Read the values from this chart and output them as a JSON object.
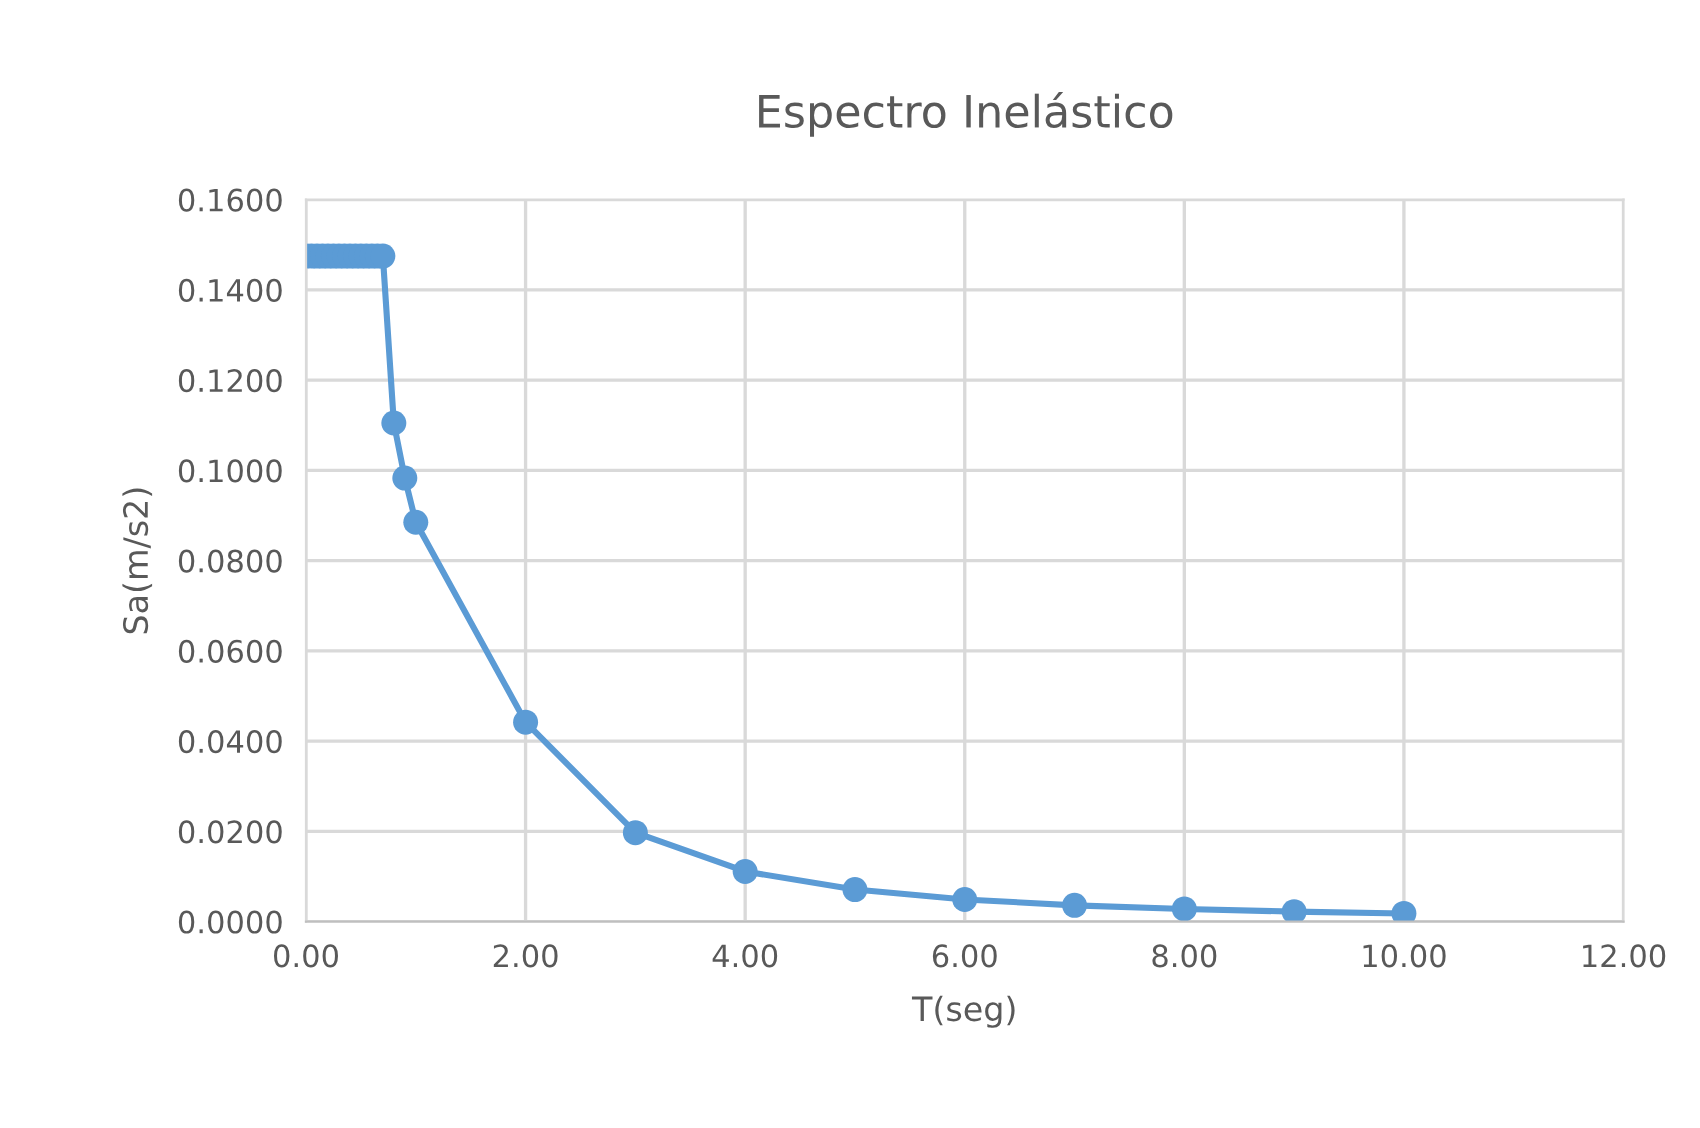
{
  "chart_data": {
    "type": "line",
    "title": "Espectro Inelástico",
    "xlabel": "T(seg)",
    "ylabel": "Sa(m/s2)",
    "x": [
      0,
      0.05,
      0.1,
      0.15,
      0.2,
      0.25,
      0.3,
      0.35,
      0.4,
      0.45,
      0.5,
      0.55,
      0.6,
      0.65,
      0.7,
      0.8,
      0.9,
      1,
      2,
      3,
      4,
      5,
      6,
      7,
      8,
      9,
      10
    ],
    "series": [
      {
        "color": "#5b9bd5",
        "values": [
          0.1475,
          0.1475,
          0.1475,
          0.1475,
          0.1475,
          0.1475,
          0.1475,
          0.1475,
          0.1475,
          0.1475,
          0.1475,
          0.1475,
          0.1475,
          0.1475,
          0.1475,
          0.1105,
          0.0983,
          0.0885,
          0.0442,
          0.0197,
          0.0111,
          0.0071,
          0.0049,
          0.0036,
          0.0028,
          0.0022,
          0.0018
        ]
      }
    ],
    "xlim": [
      0,
      12
    ],
    "xticks": [
      {
        "value": 0,
        "label": "0.00"
      },
      {
        "value": 2,
        "label": "2.00"
      },
      {
        "value": 4,
        "label": "4.00"
      },
      {
        "value": 6,
        "label": "6.00"
      },
      {
        "value": 8,
        "label": "8.00"
      },
      {
        "value": 10,
        "label": "10.00"
      },
      {
        "value": 12,
        "label": "12.00"
      }
    ],
    "ylim": [
      0,
      0.16
    ],
    "yticks": [
      {
        "value": 0,
        "label": "0.0000"
      },
      {
        "value": 0.02,
        "label": "0.0200"
      },
      {
        "value": 0.04,
        "label": "0.0400"
      },
      {
        "value": 0.06,
        "label": "0.0600"
      },
      {
        "value": 0.08,
        "label": "0.0800"
      },
      {
        "value": 0.1,
        "label": "0.1000"
      },
      {
        "value": 0.12,
        "label": "0.1200"
      },
      {
        "value": 0.14,
        "label": "0.1400"
      },
      {
        "value": 0.16,
        "label": "0.1600"
      }
    ],
    "grid": true,
    "marker": "circle",
    "line_style": "solid",
    "legend": false
  }
}
